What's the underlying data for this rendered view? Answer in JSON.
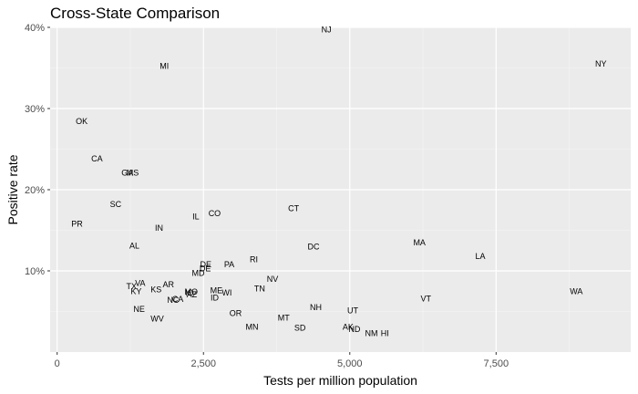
{
  "chart_data": {
    "type": "scatter",
    "title": "Cross-State Comparison",
    "xlabel": "Tests per million population",
    "ylabel": "Positive rate",
    "xlim": [
      -120,
      9800
    ],
    "ylim": [
      0.0,
      0.4
    ],
    "x_ticks": [
      {
        "value": 0,
        "label": "0"
      },
      {
        "value": 2500,
        "label": "2,500"
      },
      {
        "value": 5000,
        "label": "5,000"
      },
      {
        "value": 7500,
        "label": "7,500"
      }
    ],
    "y_ticks": [
      {
        "value": 0.1,
        "label": "10%"
      },
      {
        "value": 0.2,
        "label": "20%"
      },
      {
        "value": 0.3,
        "label": "30%"
      },
      {
        "value": 0.4,
        "label": "40%"
      }
    ],
    "grid": true,
    "points": [
      {
        "label": "NJ",
        "x": 4600,
        "y": 0.397
      },
      {
        "label": "NY",
        "x": 9290,
        "y": 0.355
      },
      {
        "label": "MI",
        "x": 1830,
        "y": 0.352
      },
      {
        "label": "OK",
        "x": 420,
        "y": 0.284
      },
      {
        "label": "CA",
        "x": 680,
        "y": 0.238
      },
      {
        "label": "GA",
        "x": 1200,
        "y": 0.221
      },
      {
        "label": "MS",
        "x": 1290,
        "y": 0.221
      },
      {
        "label": "SC",
        "x": 1000,
        "y": 0.182
      },
      {
        "label": "CT",
        "x": 4040,
        "y": 0.177
      },
      {
        "label": "CO",
        "x": 2690,
        "y": 0.171
      },
      {
        "label": "IL",
        "x": 2370,
        "y": 0.167
      },
      {
        "label": "PR",
        "x": 340,
        "y": 0.158
      },
      {
        "label": "IN",
        "x": 1740,
        "y": 0.153
      },
      {
        "label": "MA",
        "x": 6190,
        "y": 0.135
      },
      {
        "label": "AL",
        "x": 1320,
        "y": 0.131
      },
      {
        "label": "DC",
        "x": 4380,
        "y": 0.13
      },
      {
        "label": "LA",
        "x": 7230,
        "y": 0.118
      },
      {
        "label": "RI",
        "x": 3360,
        "y": 0.114
      },
      {
        "label": "PA",
        "x": 2940,
        "y": 0.108
      },
      {
        "label": "DE",
        "x": 2540,
        "y": 0.108
      },
      {
        "label": "DE",
        "x": 2530,
        "y": 0.103
      },
      {
        "label": "MD",
        "x": 2410,
        "y": 0.097
      },
      {
        "label": "NV",
        "x": 3680,
        "y": 0.09
      },
      {
        "label": "VA",
        "x": 1420,
        "y": 0.085
      },
      {
        "label": "AR",
        "x": 1900,
        "y": 0.083
      },
      {
        "label": "TX",
        "x": 1270,
        "y": 0.081
      },
      {
        "label": "TN",
        "x": 3460,
        "y": 0.078
      },
      {
        "label": "WA",
        "x": 8870,
        "y": 0.075
      },
      {
        "label": "KS",
        "x": 1690,
        "y": 0.077
      },
      {
        "label": "ME",
        "x": 2720,
        "y": 0.076
      },
      {
        "label": "KY",
        "x": 1350,
        "y": 0.075
      },
      {
        "label": "MO",
        "x": 2290,
        "y": 0.074
      },
      {
        "label": "WI",
        "x": 2900,
        "y": 0.073
      },
      {
        "label": "IO",
        "x": 2260,
        "y": 0.073
      },
      {
        "label": "AZ",
        "x": 2300,
        "y": 0.071
      },
      {
        "label": "VT",
        "x": 6300,
        "y": 0.066
      },
      {
        "label": "ID",
        "x": 2690,
        "y": 0.067
      },
      {
        "label": "NC",
        "x": 1980,
        "y": 0.064
      },
      {
        "label": "CA",
        "x": 2060,
        "y": 0.065
      },
      {
        "label": "NH",
        "x": 4420,
        "y": 0.055
      },
      {
        "label": "NE",
        "x": 1400,
        "y": 0.053
      },
      {
        "label": "UT",
        "x": 5050,
        "y": 0.051
      },
      {
        "label": "OR",
        "x": 3050,
        "y": 0.048
      },
      {
        "label": "MT",
        "x": 3870,
        "y": 0.042
      },
      {
        "label": "WV",
        "x": 1710,
        "y": 0.041
      },
      {
        "label": "MN",
        "x": 3330,
        "y": 0.031
      },
      {
        "label": "SD",
        "x": 4150,
        "y": 0.03
      },
      {
        "label": "AK",
        "x": 4970,
        "y": 0.031
      },
      {
        "label": "ND",
        "x": 5080,
        "y": 0.028
      },
      {
        "label": "NM",
        "x": 5370,
        "y": 0.023
      },
      {
        "label": "HI",
        "x": 5600,
        "y": 0.023
      }
    ]
  }
}
